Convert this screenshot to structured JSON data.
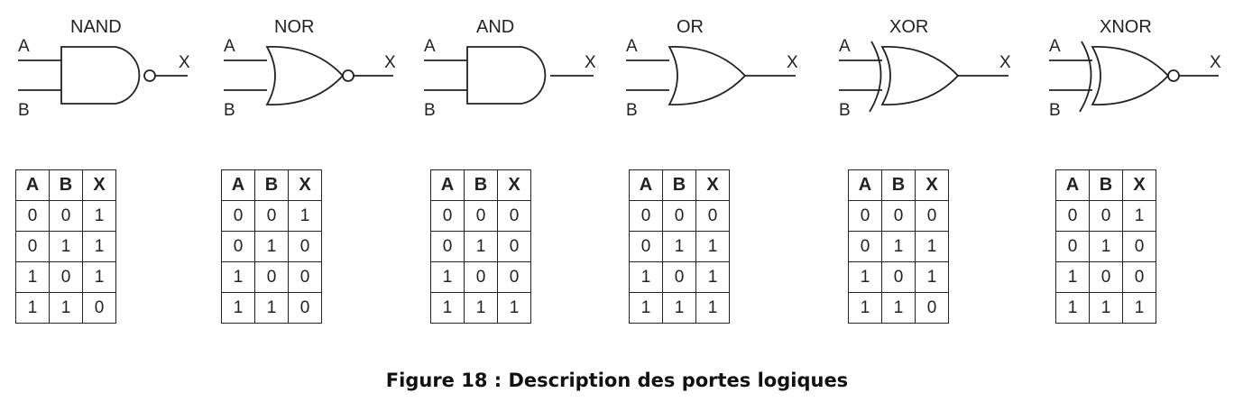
{
  "caption": "Figure 18 : Description des portes logiques",
  "input_a": "A",
  "input_b": "B",
  "output": "X",
  "table_headers": [
    "A",
    "B",
    "X"
  ],
  "gates": [
    {
      "name": "NAND",
      "rows": [
        [
          "0",
          "0",
          "1"
        ],
        [
          "0",
          "1",
          "1"
        ],
        [
          "1",
          "0",
          "1"
        ],
        [
          "1",
          "1",
          "0"
        ]
      ]
    },
    {
      "name": "NOR",
      "rows": [
        [
          "0",
          "0",
          "1"
        ],
        [
          "0",
          "1",
          "0"
        ],
        [
          "1",
          "0",
          "0"
        ],
        [
          "1",
          "1",
          "0"
        ]
      ]
    },
    {
      "name": "AND",
      "rows": [
        [
          "0",
          "0",
          "0"
        ],
        [
          "0",
          "1",
          "0"
        ],
        [
          "1",
          "0",
          "0"
        ],
        [
          "1",
          "1",
          "1"
        ]
      ]
    },
    {
      "name": "OR",
      "rows": [
        [
          "0",
          "0",
          "0"
        ],
        [
          "0",
          "1",
          "1"
        ],
        [
          "1",
          "0",
          "1"
        ],
        [
          "1",
          "1",
          "1"
        ]
      ]
    },
    {
      "name": "XOR",
      "rows": [
        [
          "0",
          "0",
          "0"
        ],
        [
          "0",
          "1",
          "1"
        ],
        [
          "1",
          "0",
          "1"
        ],
        [
          "1",
          "1",
          "0"
        ]
      ]
    },
    {
      "name": "XNOR",
      "rows": [
        [
          "0",
          "0",
          "1"
        ],
        [
          "0",
          "1",
          "0"
        ],
        [
          "1",
          "0",
          "0"
        ],
        [
          "1",
          "1",
          "1"
        ]
      ]
    }
  ]
}
